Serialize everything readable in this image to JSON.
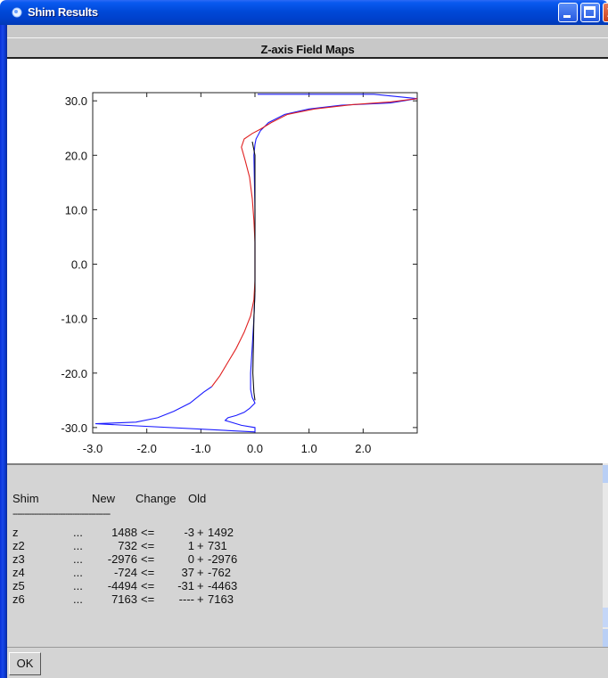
{
  "window": {
    "title": "Shim Results",
    "header": "Z-axis Field Maps"
  },
  "chart_data": {
    "type": "line",
    "xlim": [
      -3.0,
      3.0
    ],
    "ylim": [
      -31,
      31.5
    ],
    "x_ticks": [
      "-3.0",
      "-2.0",
      "-1.0",
      "0.0",
      "1.0",
      "2.0"
    ],
    "x_tick_values": [
      -3,
      -2,
      -1,
      0,
      1,
      2
    ],
    "y_ticks": [
      "30.0",
      "20.0",
      "10.0",
      "0.0",
      "-10.0",
      "-20.0",
      "-30.0"
    ],
    "y_tick_values": [
      30,
      20,
      10,
      0,
      -10,
      -20,
      -30
    ],
    "series": [
      {
        "color": "#1a1aff",
        "points": [
          [
            0.05,
            31.2
          ],
          [
            2.2,
            31.2
          ],
          [
            3.0,
            30.4
          ],
          [
            2.5,
            29.6
          ],
          [
            1.6,
            29.2
          ],
          [
            1.0,
            28.5
          ],
          [
            0.55,
            27.5
          ],
          [
            0.25,
            26.0
          ],
          [
            0.1,
            24.5
          ],
          [
            0.02,
            23.0
          ],
          [
            0.0,
            22.0
          ],
          [
            -0.02,
            20.0
          ],
          [
            -0.01,
            15.0
          ],
          [
            0.0,
            10.0
          ],
          [
            0.0,
            5.0
          ],
          [
            0.0,
            0.0
          ],
          [
            0.0,
            -5.0
          ],
          [
            -0.02,
            -10.0
          ],
          [
            -0.05,
            -15.0
          ],
          [
            -0.08,
            -20.0
          ],
          [
            -0.08,
            -23.0
          ],
          [
            -0.05,
            -24.5
          ],
          [
            0.0,
            -25.5
          ],
          [
            -0.1,
            -26.5
          ],
          [
            -0.2,
            -27.2
          ],
          [
            -0.35,
            -27.8
          ],
          [
            -0.5,
            -28.2
          ],
          [
            -0.55,
            -28.7
          ],
          [
            -0.25,
            -29.6
          ],
          [
            0.0,
            -30.0
          ],
          [
            0.0,
            -30.8
          ],
          [
            -2.95,
            -29.3
          ],
          [
            -2.2,
            -29.0
          ],
          [
            -1.8,
            -28.2
          ],
          [
            -1.5,
            -27.0
          ],
          [
            -1.2,
            -25.5
          ],
          [
            -0.95,
            -23.5
          ],
          [
            -0.8,
            -22.5
          ]
        ]
      },
      {
        "color": "#e02020",
        "points": [
          [
            -0.8,
            -22.5
          ],
          [
            -0.65,
            -20.5
          ],
          [
            -0.5,
            -18.0
          ],
          [
            -0.35,
            -15.5
          ],
          [
            -0.2,
            -12.5
          ],
          [
            -0.08,
            -9.5
          ],
          [
            -0.02,
            -6.5
          ],
          [
            0.0,
            -3.0
          ],
          [
            0.0,
            0.0
          ],
          [
            0.0,
            4.0
          ],
          [
            -0.02,
            8.0
          ],
          [
            -0.05,
            12.0
          ],
          [
            -0.1,
            16.0
          ],
          [
            -0.18,
            19.0
          ],
          [
            -0.25,
            21.5
          ],
          [
            -0.2,
            23.0
          ],
          [
            -0.05,
            24.0
          ],
          [
            0.1,
            24.8
          ],
          [
            0.3,
            26.0
          ],
          [
            0.6,
            27.5
          ],
          [
            1.1,
            28.5
          ],
          [
            1.8,
            29.3
          ],
          [
            2.5,
            29.8
          ],
          [
            3.0,
            30.4
          ]
        ]
      },
      {
        "color": "#111111",
        "points": [
          [
            -0.05,
            22.5
          ],
          [
            0.0,
            20.0
          ],
          [
            0.0,
            15.0
          ],
          [
            0.0,
            10.0
          ],
          [
            0.0,
            5.0
          ],
          [
            0.0,
            0.0
          ],
          [
            0.0,
            -5.0
          ],
          [
            -0.02,
            -10.0
          ],
          [
            -0.03,
            -15.0
          ],
          [
            -0.04,
            -20.0
          ],
          [
            -0.02,
            -23.5
          ],
          [
            0.0,
            -25.0
          ]
        ]
      }
    ]
  },
  "results": {
    "headers": {
      "shim": "Shim",
      "new": "New",
      "change": "Change",
      "old": "Old"
    },
    "divider": "-----------------------------------------",
    "rows": [
      {
        "name": "z",
        "dots": "...",
        "new": "1488",
        "arrow": "<=",
        "change": "-3",
        "plus": "+",
        "old": "1492"
      },
      {
        "name": "z2",
        "dots": "...",
        "new": "732",
        "arrow": "<=",
        "change": "1",
        "plus": "+",
        "old": "731"
      },
      {
        "name": "z3",
        "dots": "...",
        "new": "-2976",
        "arrow": "<=",
        "change": "0",
        "plus": "+",
        "old": "-2976"
      },
      {
        "name": "z4",
        "dots": "...",
        "new": "-724",
        "arrow": "<=",
        "change": "37",
        "plus": "+",
        "old": "-762"
      },
      {
        "name": "z5",
        "dots": "...",
        "new": "-4494",
        "arrow": "<=",
        "change": "-31",
        "plus": "+",
        "old": "-4463"
      },
      {
        "name": "z6",
        "dots": "...",
        "new": "7163",
        "arrow": "<=",
        "change": "----",
        "plus": "+",
        "old": "7163"
      }
    ]
  },
  "buttons": {
    "ok": "OK"
  }
}
